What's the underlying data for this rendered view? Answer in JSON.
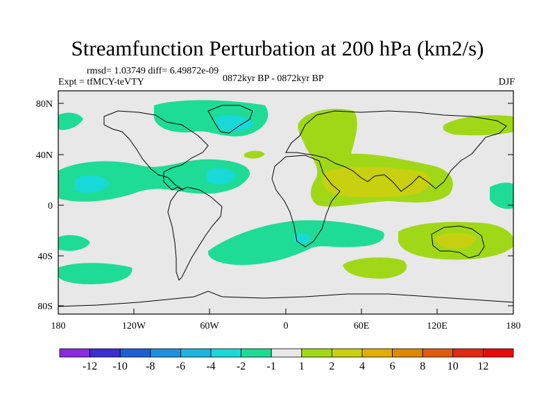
{
  "figure": {
    "title": "Streamfunction Perturbation at 200 hPa (km2/s)",
    "rmsd_text": "rmsd= 1.03749 diff= 6.49872e-09",
    "experiment_text": "Expt = tfMCY-teVTY",
    "period_text": "0872kyr BP - 0872kyr BP",
    "season_text": "DJF"
  },
  "axes": {
    "y_ticks": [
      "80N",
      "40N",
      "0",
      "40S",
      "80S"
    ],
    "x_ticks": [
      "180",
      "120W",
      "60W",
      "0",
      "60E",
      "120E",
      "180"
    ]
  },
  "colorbar": {
    "labels": [
      "-12",
      "-10",
      "-8",
      "-6",
      "-4",
      "-2",
      "-1",
      "1",
      "2",
      "4",
      "6",
      "8",
      "10",
      "12"
    ],
    "colors": [
      "#8a2be2",
      "#3a2fd0",
      "#1e5fd6",
      "#1e90e0",
      "#1eb4e0",
      "#19d8d8",
      "#1edc96",
      "#e8e8e8",
      "#a0d818",
      "#c8d010",
      "#e0b000",
      "#e08800",
      "#e05a10",
      "#e02a10",
      "#e80a0a"
    ]
  },
  "colors": {
    "land": "#e8e8e8",
    "neg1": "#1edc96",
    "neg2": "#19d8d8",
    "pos1": "#a0d818",
    "pos2": "#c8d010"
  }
}
